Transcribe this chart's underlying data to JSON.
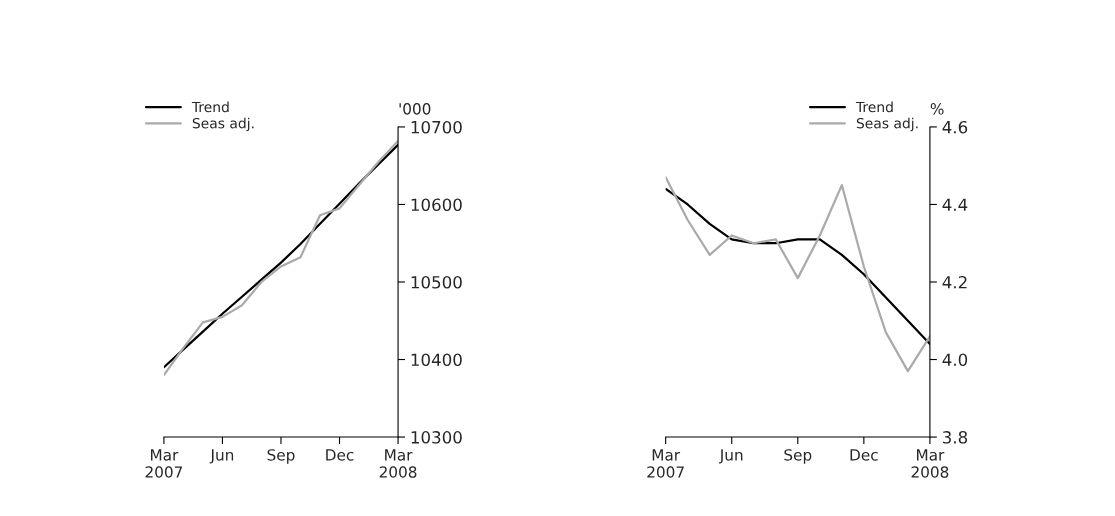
{
  "chart_data": [
    {
      "type": "line",
      "ylabel": "'000",
      "x": [
        "2007-03",
        "2007-04",
        "2007-05",
        "2007-06",
        "2007-07",
        "2007-08",
        "2007-09",
        "2007-10",
        "2007-11",
        "2007-12",
        "2008-01",
        "2008-02",
        "2008-03"
      ],
      "xlim": [
        "2007-03",
        "2008-03"
      ],
      "xticks": [
        {
          "value": "2007-03",
          "label": "Mar\n2007"
        },
        {
          "value": "2007-06",
          "label": "Jun"
        },
        {
          "value": "2007-09",
          "label": "Sep"
        },
        {
          "value": "2007-12",
          "label": "Dec"
        },
        {
          "value": "2008-03",
          "label": "Mar\n2008"
        }
      ],
      "ylim": [
        10300,
        10700
      ],
      "yticks": [
        10300,
        10400,
        10500,
        10600,
        10700
      ],
      "legend": "top left",
      "grid": false,
      "series": [
        {
          "name": "Trend",
          "color": "#000000",
          "values": [
            10390,
            10413,
            10436,
            10459,
            10481,
            10503,
            10525,
            10549,
            10575,
            10601,
            10627,
            10652,
            10677
          ]
        },
        {
          "name": "Seas adj.",
          "color": "#aaaaaa",
          "values": [
            10380,
            10415,
            10448,
            10455,
            10470,
            10500,
            10520,
            10532,
            10586,
            10595,
            10625,
            10655,
            10682
          ]
        }
      ]
    },
    {
      "type": "line",
      "ylabel": "%",
      "x": [
        "2007-03",
        "2007-04",
        "2007-05",
        "2007-06",
        "2007-07",
        "2007-08",
        "2007-09",
        "2007-10",
        "2007-11",
        "2007-12",
        "2008-01",
        "2008-02",
        "2008-03"
      ],
      "xlim": [
        "2007-03",
        "2008-03"
      ],
      "xticks": [
        {
          "value": "2007-03",
          "label": "Mar\n2007"
        },
        {
          "value": "2007-06",
          "label": "Jun"
        },
        {
          "value": "2007-09",
          "label": "Sep"
        },
        {
          "value": "2007-12",
          "label": "Dec"
        },
        {
          "value": "2008-03",
          "label": "Mar\n2008"
        }
      ],
      "ylim": [
        3.8,
        4.6
      ],
      "yticks": [
        3.8,
        {
          "value": 4.0,
          "label": "4.0"
        },
        4.2,
        4.4,
        4.6
      ],
      "legend": "top right",
      "grid": false,
      "series": [
        {
          "name": "Trend",
          "color": "#000000",
          "values": [
            4.44,
            4.4,
            4.35,
            4.31,
            4.3,
            4.3,
            4.31,
            4.31,
            4.27,
            4.22,
            4.16,
            4.1,
            4.04
          ]
        },
        {
          "name": "Seas adj.",
          "color": "#aaaaaa",
          "values": [
            4.47,
            4.36,
            4.27,
            4.32,
            4.3,
            4.31,
            4.21,
            4.32,
            4.45,
            4.24,
            4.07,
            3.97,
            4.06
          ]
        }
      ]
    }
  ]
}
